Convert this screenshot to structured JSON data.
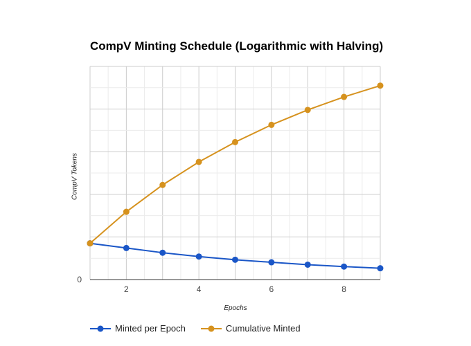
{
  "chart_data": {
    "type": "line",
    "title": "CompV Minting Schedule (Logarithmic with Halving)",
    "xlabel": "Epochs",
    "ylabel": "CompV Tokens",
    "x": [
      1,
      2,
      3,
      4,
      5,
      6,
      7,
      8,
      9
    ],
    "xlim": [
      1,
      9
    ],
    "ylim": [
      0,
      100
    ],
    "x_ticks": [
      2,
      4,
      6,
      8
    ],
    "y_ticks": [
      0
    ],
    "grid": true,
    "legend_position": "bottom-left",
    "series": [
      {
        "name": "Minted per Epoch",
        "color": "#1a56c7",
        "values": [
          17,
          14.8,
          12.6,
          10.8,
          9.3,
          8.1,
          7.0,
          6.1,
          5.3
        ]
      },
      {
        "name": "Cumulative Minted",
        "color": "#d6921e",
        "values": [
          17,
          31.8,
          44.4,
          55.2,
          64.5,
          72.6,
          79.6,
          85.7,
          91.0
        ]
      }
    ]
  }
}
